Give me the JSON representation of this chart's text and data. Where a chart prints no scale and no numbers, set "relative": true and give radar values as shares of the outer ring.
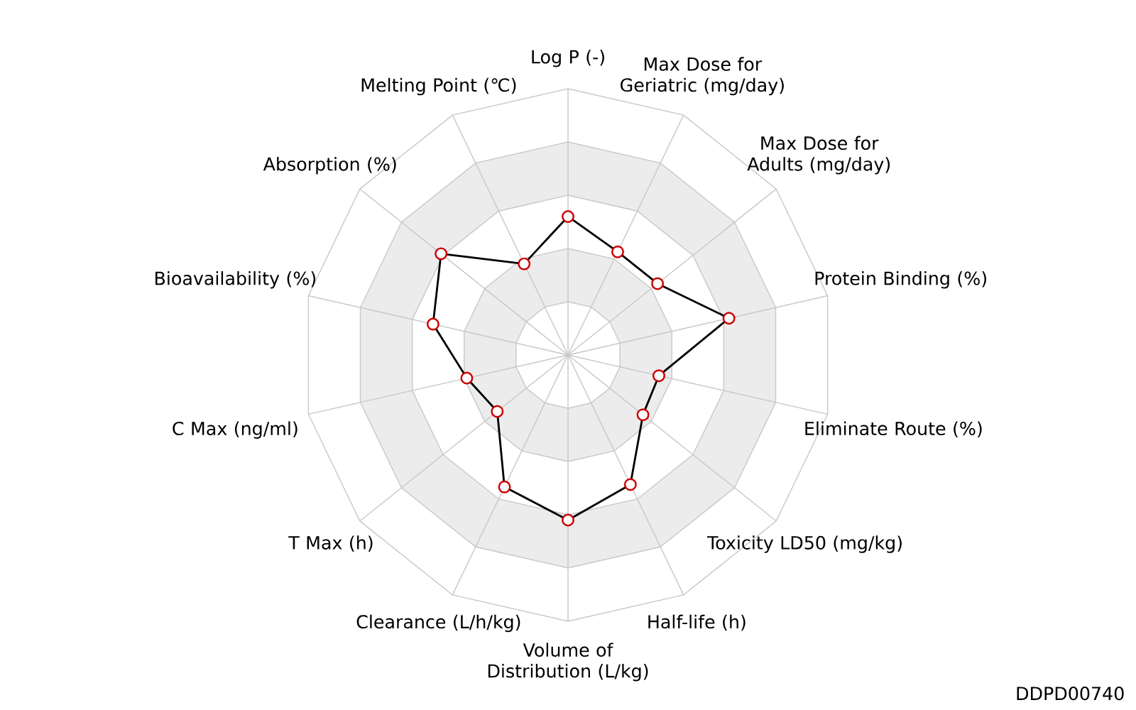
{
  "chart_data": {
    "type": "radar",
    "relative": true,
    "grid": true,
    "marker": "circle",
    "line_style": "solid",
    "categories": [
      "Log P (-)",
      "Max Dose for Geriatric (mg/day)",
      "Max Dose for Adults (mg/day)",
      "Protein Binding (%)",
      "Eliminate Route (%)",
      "Toxicity LD50 (mg/kg)",
      "Half-life (h)",
      "Volume of Distribution (L/kg)",
      "Clearance (L/h/kg)",
      "T Max (h)",
      "C Max (ng/ml)",
      "Bioavailability (%)",
      "Absorption (%)",
      "Melting Point (℃)"
    ],
    "series": [
      {
        "color": "#000000",
        "values": [
          0.52,
          0.43,
          0.43,
          0.62,
          0.35,
          0.36,
          0.54,
          0.62,
          0.55,
          0.34,
          0.39,
          0.52,
          0.61,
          0.38
        ]
      }
    ],
    "annotations": [
      "DDPD00740"
    ]
  }
}
